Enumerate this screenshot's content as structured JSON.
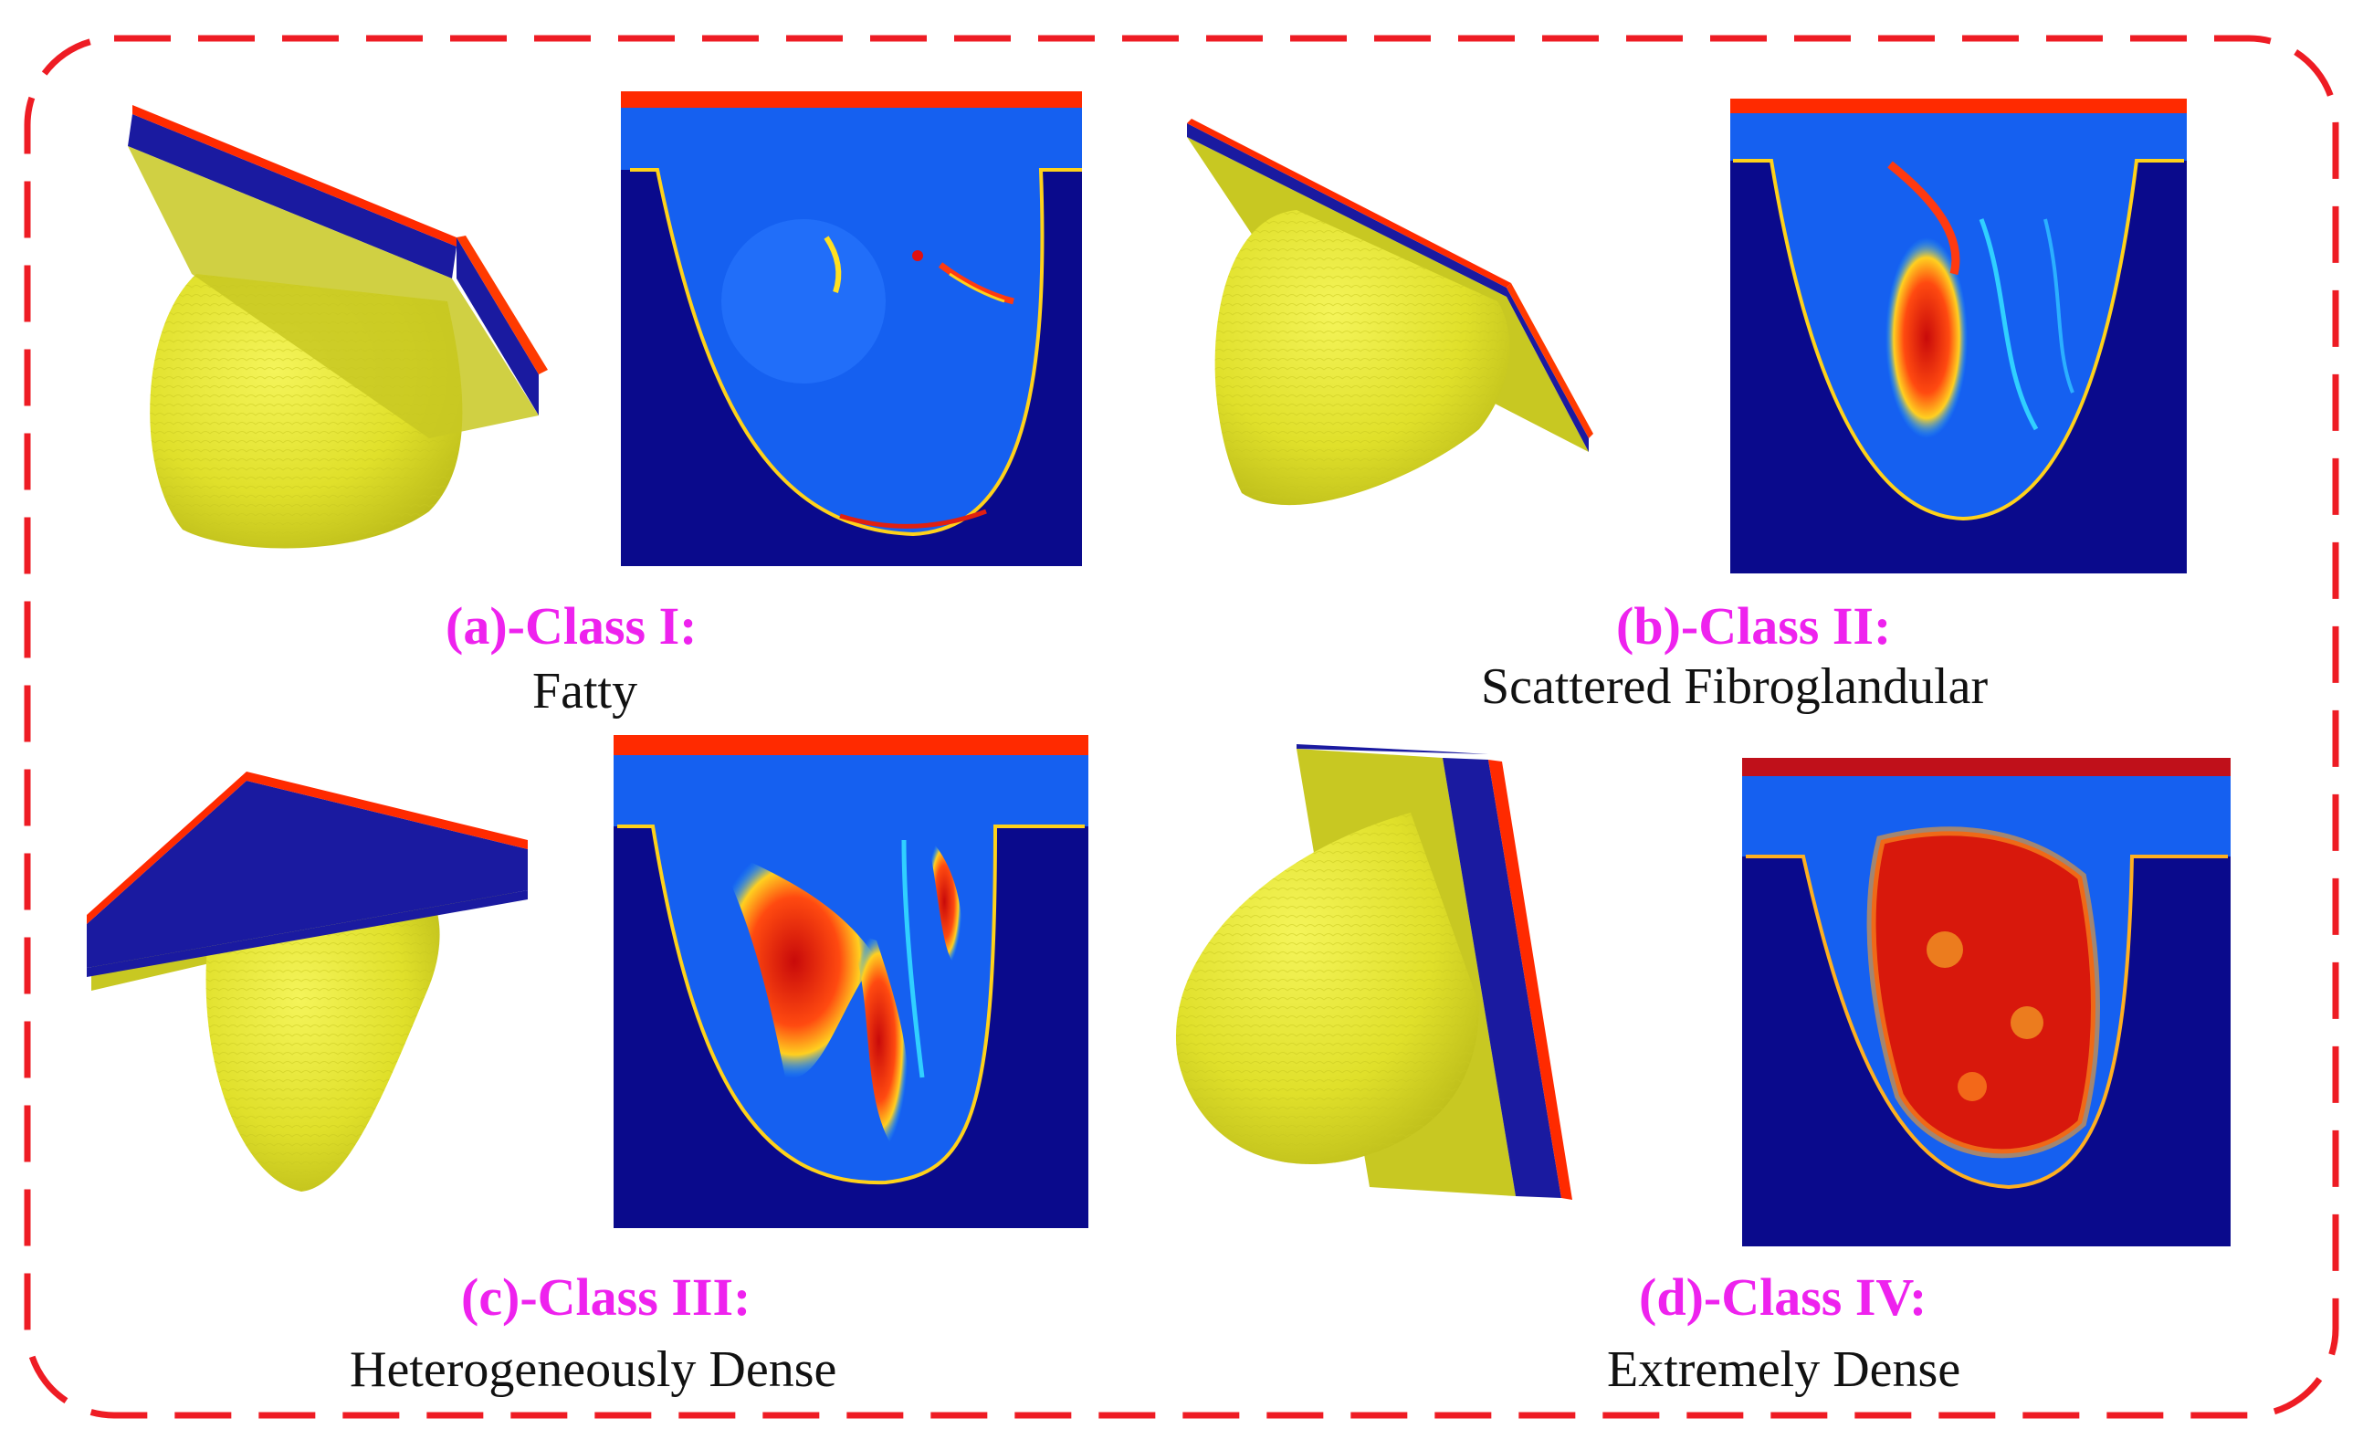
{
  "colors": {
    "frame_dash": "#ee1c24",
    "class_label": "#ee22ee",
    "desc_label": "#111111",
    "tissue_background": "#0a0a8c",
    "fat": "#1560f0",
    "skin_line": "#ffd21a",
    "plate_top": "#ff2a00",
    "plate_body": "#1a1aa0",
    "volume_yellow": "#e6e62a",
    "dense": "#d8180c"
  },
  "panels": [
    {
      "id": "a",
      "class_label": "(a)-Class I:",
      "description": "Fatty",
      "volume_icon": "breast-volume-3d",
      "slice_icon": "density-slice"
    },
    {
      "id": "b",
      "class_label": "(b)-Class II:",
      "description": "Scattered Fibroglandular",
      "volume_icon": "breast-volume-3d",
      "slice_icon": "density-slice"
    },
    {
      "id": "c",
      "class_label": "(c)-Class III:",
      "description": "Heterogeneously Dense",
      "volume_icon": "breast-volume-3d",
      "slice_icon": "density-slice"
    },
    {
      "id": "d",
      "class_label": "(d)-Class IV:",
      "description": "Extremely Dense",
      "volume_icon": "breast-volume-3d",
      "slice_icon": "density-slice"
    }
  ]
}
